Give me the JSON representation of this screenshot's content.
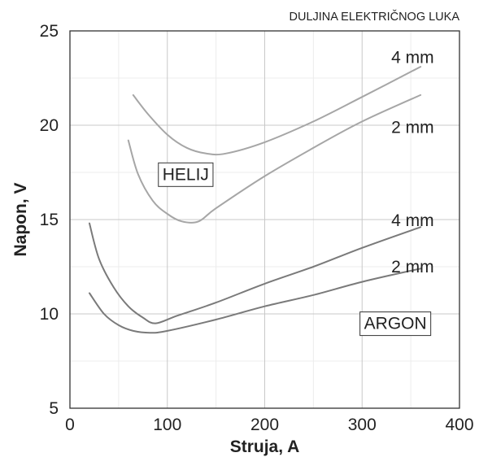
{
  "chart_data": {
    "type": "line",
    "title": "",
    "annotation": "DULJINA ELEKTRIČNOG LUKA",
    "xlabel": "Struja, A",
    "ylabel": "Napon, V",
    "xlim": [
      0,
      400
    ],
    "ylim": [
      5,
      25
    ],
    "x_ticks": [
      0,
      100,
      200,
      300,
      400
    ],
    "y_ticks": [
      5,
      10,
      15,
      20,
      25
    ],
    "grid": true,
    "minor_grid": true,
    "group_labels": [
      {
        "text": "HELIJ",
        "x": 95,
        "y": 17.4
      },
      {
        "text": "ARGON",
        "x": 302,
        "y": 9.5
      }
    ],
    "series": [
      {
        "name": "4 mm",
        "group": "HELIJ",
        "color": "#a6a6a6",
        "label_pos": {
          "x": 330,
          "y": 23.6
        },
        "x": [
          65,
          80,
          100,
          120,
          140,
          160,
          200,
          250,
          300,
          360
        ],
        "y": [
          21.6,
          20.6,
          19.5,
          18.8,
          18.5,
          18.5,
          19.1,
          20.2,
          21.5,
          23.1
        ]
      },
      {
        "name": "2 mm",
        "group": "HELIJ",
        "color": "#a6a6a6",
        "label_pos": {
          "x": 330,
          "y": 19.9
        },
        "x": [
          60,
          70,
          85,
          100,
          115,
          132,
          150,
          200,
          250,
          300,
          360
        ],
        "y": [
          19.2,
          17.4,
          16.0,
          15.3,
          14.9,
          14.9,
          15.6,
          17.3,
          18.8,
          20.2,
          21.6
        ]
      },
      {
        "name": "4 mm",
        "group": "ARGON",
        "color": "#7a7a7a",
        "label_pos": {
          "x": 330,
          "y": 14.95
        },
        "x": [
          20,
          30,
          45,
          60,
          75,
          88,
          110,
          150,
          200,
          250,
          300,
          360
        ],
        "y": [
          14.8,
          12.9,
          11.4,
          10.4,
          9.8,
          9.5,
          9.9,
          10.6,
          11.6,
          12.5,
          13.5,
          14.6
        ]
      },
      {
        "name": "2 mm",
        "group": "ARGON",
        "color": "#7a7a7a",
        "label_pos": {
          "x": 330,
          "y": 12.5
        },
        "x": [
          20,
          35,
          50,
          65,
          82,
          100,
          150,
          200,
          250,
          300,
          360
        ],
        "y": [
          11.1,
          10.0,
          9.4,
          9.1,
          9.0,
          9.1,
          9.7,
          10.4,
          11.0,
          11.7,
          12.4
        ]
      }
    ]
  }
}
